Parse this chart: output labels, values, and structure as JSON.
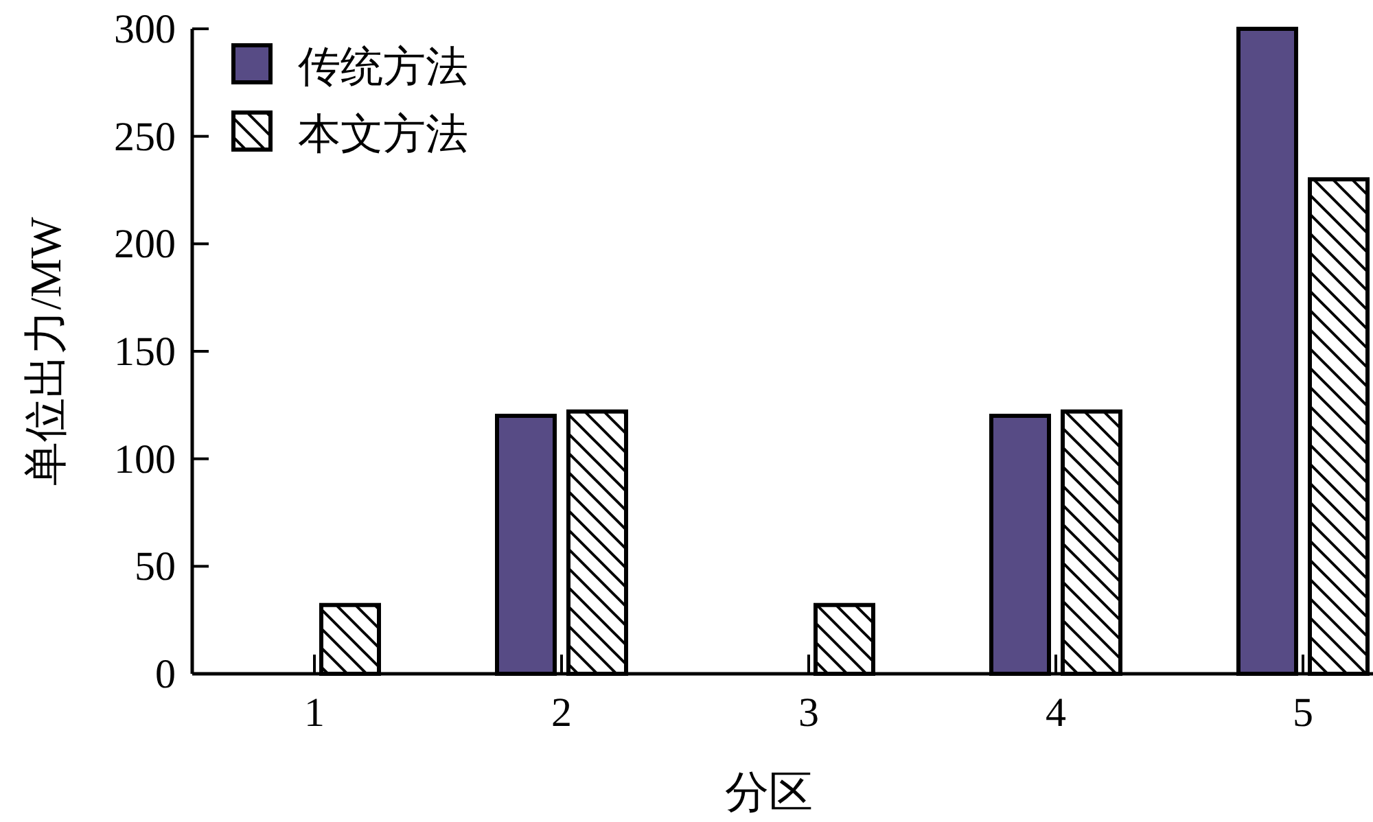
{
  "chart_data": {
    "type": "bar",
    "xlabel": "分区",
    "ylabel": "单位出力/MW",
    "categories": [
      "1",
      "2",
      "3",
      "4",
      "5"
    ],
    "series": [
      {
        "name": "传统方法",
        "color": "#574b85",
        "values": [
          null,
          120,
          null,
          120,
          300
        ]
      },
      {
        "name": "本文方法",
        "color": "#000000",
        "values": [
          32,
          122,
          32,
          122,
          230
        ]
      }
    ],
    "ylim": [
      0,
      300
    ],
    "yticks": [
      0,
      50,
      100,
      150,
      200,
      250,
      300
    ],
    "legend": "top left",
    "grid": false
  }
}
